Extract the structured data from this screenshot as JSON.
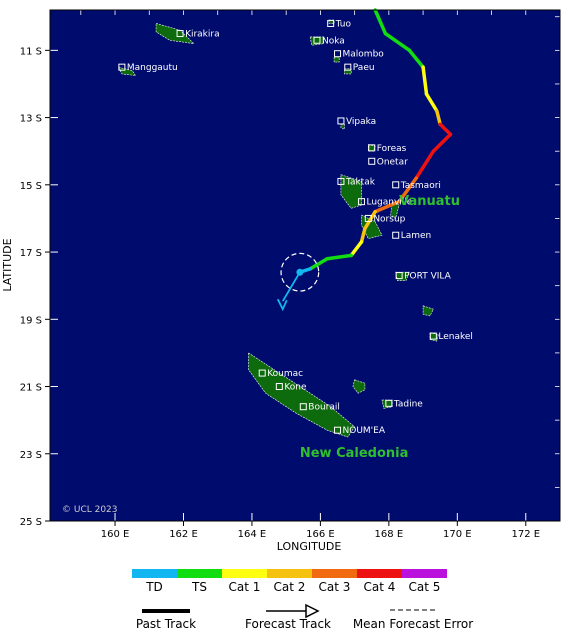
{
  "axes": {
    "x_title": "LONGITUDE",
    "y_title": "LATITUDE",
    "x_ticks": [
      {
        "lon": 160,
        "label": "160 E"
      },
      {
        "lon": 162,
        "label": "162 E"
      },
      {
        "lon": 164,
        "label": "164 E"
      },
      {
        "lon": 166,
        "label": "166 E"
      },
      {
        "lon": 168,
        "label": "168 E"
      },
      {
        "lon": 170,
        "label": "170 E"
      },
      {
        "lon": 172,
        "label": "172 E"
      }
    ],
    "y_ticks": [
      {
        "lat": -11,
        "label": "11 S"
      },
      {
        "lat": -13,
        "label": "13 S"
      },
      {
        "lat": -15,
        "label": "15 S"
      },
      {
        "lat": -17,
        "label": "17 S"
      },
      {
        "lat": -19,
        "label": "19 S"
      },
      {
        "lat": -21,
        "label": "21 S"
      },
      {
        "lat": -23,
        "label": "23 S"
      },
      {
        "lat": -25,
        "label": "25 S"
      }
    ],
    "lon_range": [
      158.1,
      173.0
    ],
    "lat_range": [
      -25.0,
      -9.8
    ]
  },
  "colors": {
    "ocean": "#000b6e",
    "land": "#0d6b0d",
    "TD": "#12b6f0",
    "TS": "#11dd11",
    "Cat 1": "#ffff11",
    "Cat 2": "#f4c20f",
    "Cat 3": "#f26a10",
    "Cat 4": "#ee1111",
    "Cat 5": "#bb11dd"
  },
  "places": [
    {
      "name": "Tuo",
      "lon": 166.3,
      "lat": -10.2
    },
    {
      "name": "Kirakira",
      "lon": 161.9,
      "lat": -10.5
    },
    {
      "name": "Noka",
      "lon": 165.9,
      "lat": -10.7
    },
    {
      "name": "Malombo",
      "lon": 166.5,
      "lat": -11.1
    },
    {
      "name": "Manggautu",
      "lon": 160.2,
      "lat": -11.5
    },
    {
      "name": "Paeu",
      "lon": 166.8,
      "lat": -11.5
    },
    {
      "name": "Vipaka",
      "lon": 166.6,
      "lat": -13.1
    },
    {
      "name": "Foreas",
      "lon": 167.5,
      "lat": -13.9
    },
    {
      "name": "Onetar",
      "lon": 167.5,
      "lat": -14.3
    },
    {
      "name": "Taktak",
      "lon": 166.6,
      "lat": -14.9
    },
    {
      "name": "Tasmaori",
      "lon": 168.2,
      "lat": -15.0
    },
    {
      "name": "Luganville",
      "lon": 167.2,
      "lat": -15.5
    },
    {
      "name": "Norsup",
      "lon": 167.4,
      "lat": -16.0
    },
    {
      "name": "Lamen",
      "lon": 168.2,
      "lat": -16.5
    },
    {
      "name": "PORT VILA",
      "lon": 168.3,
      "lat": -17.7
    },
    {
      "name": "Lenakel",
      "lon": 169.3,
      "lat": -19.5
    },
    {
      "name": "Koumac",
      "lon": 164.3,
      "lat": -20.6
    },
    {
      "name": "Kone",
      "lon": 164.8,
      "lat": -21.0
    },
    {
      "name": "Bourail",
      "lon": 165.5,
      "lat": -21.6
    },
    {
      "name": "Tadine",
      "lon": 168.0,
      "lat": -21.5
    },
    {
      "name": "NOUM'EA",
      "lon": 166.5,
      "lat": -22.3
    }
  ],
  "regions": [
    {
      "name": "Vanuatu",
      "lon": 168.3,
      "lat": -15.6
    },
    {
      "name": "New Caledonia",
      "lon": 165.4,
      "lat": -23.1
    }
  ],
  "copyright": "© UCL 2023",
  "storm": {
    "past_track": [
      {
        "lon": 167.6,
        "lat": -9.8,
        "cat": "TS"
      },
      {
        "lon": 167.9,
        "lat": -10.5,
        "cat": "TS"
      },
      {
        "lon": 168.6,
        "lat": -11.0,
        "cat": "TS"
      },
      {
        "lon": 169.0,
        "lat": -11.5,
        "cat": "TS"
      },
      {
        "lon": 169.1,
        "lat": -12.3,
        "cat": "Cat 1"
      },
      {
        "lon": 169.4,
        "lat": -12.8,
        "cat": "Cat 1"
      },
      {
        "lon": 169.5,
        "lat": -13.2,
        "cat": "Cat 2"
      },
      {
        "lon": 169.8,
        "lat": -13.5,
        "cat": "Cat 4"
      },
      {
        "lon": 169.3,
        "lat": -14.0,
        "cat": "Cat 4"
      },
      {
        "lon": 168.8,
        "lat": -14.8,
        "cat": "Cat 4"
      },
      {
        "lon": 168.3,
        "lat": -15.5,
        "cat": "Cat 3"
      },
      {
        "lon": 167.6,
        "lat": -15.8,
        "cat": "Cat 3"
      },
      {
        "lon": 167.3,
        "lat": -16.3,
        "cat": "Cat 2"
      },
      {
        "lon": 167.2,
        "lat": -16.7,
        "cat": "Cat 2"
      },
      {
        "lon": 166.9,
        "lat": -17.1,
        "cat": "Cat 1"
      },
      {
        "lon": 166.2,
        "lat": -17.2,
        "cat": "TS"
      },
      {
        "lon": 165.7,
        "lat": -17.5,
        "cat": "TS"
      },
      {
        "lon": 165.4,
        "lat": -17.6,
        "cat": "TD"
      }
    ],
    "current_position": {
      "lon": 165.4,
      "lat": -17.6
    },
    "forecast_track": [
      {
        "lon": 165.4,
        "lat": -17.6
      },
      {
        "lon": 164.9,
        "lat": -18.7
      }
    ],
    "forecast_error_radius_deg": 0.55
  },
  "legend": {
    "categories": [
      "TD",
      "TS",
      "Cat 1",
      "Cat 2",
      "Cat 3",
      "Cat 4",
      "Cat 5"
    ],
    "track_types": [
      "Past Track",
      "Forecast Track",
      "Mean Forecast Error"
    ]
  }
}
